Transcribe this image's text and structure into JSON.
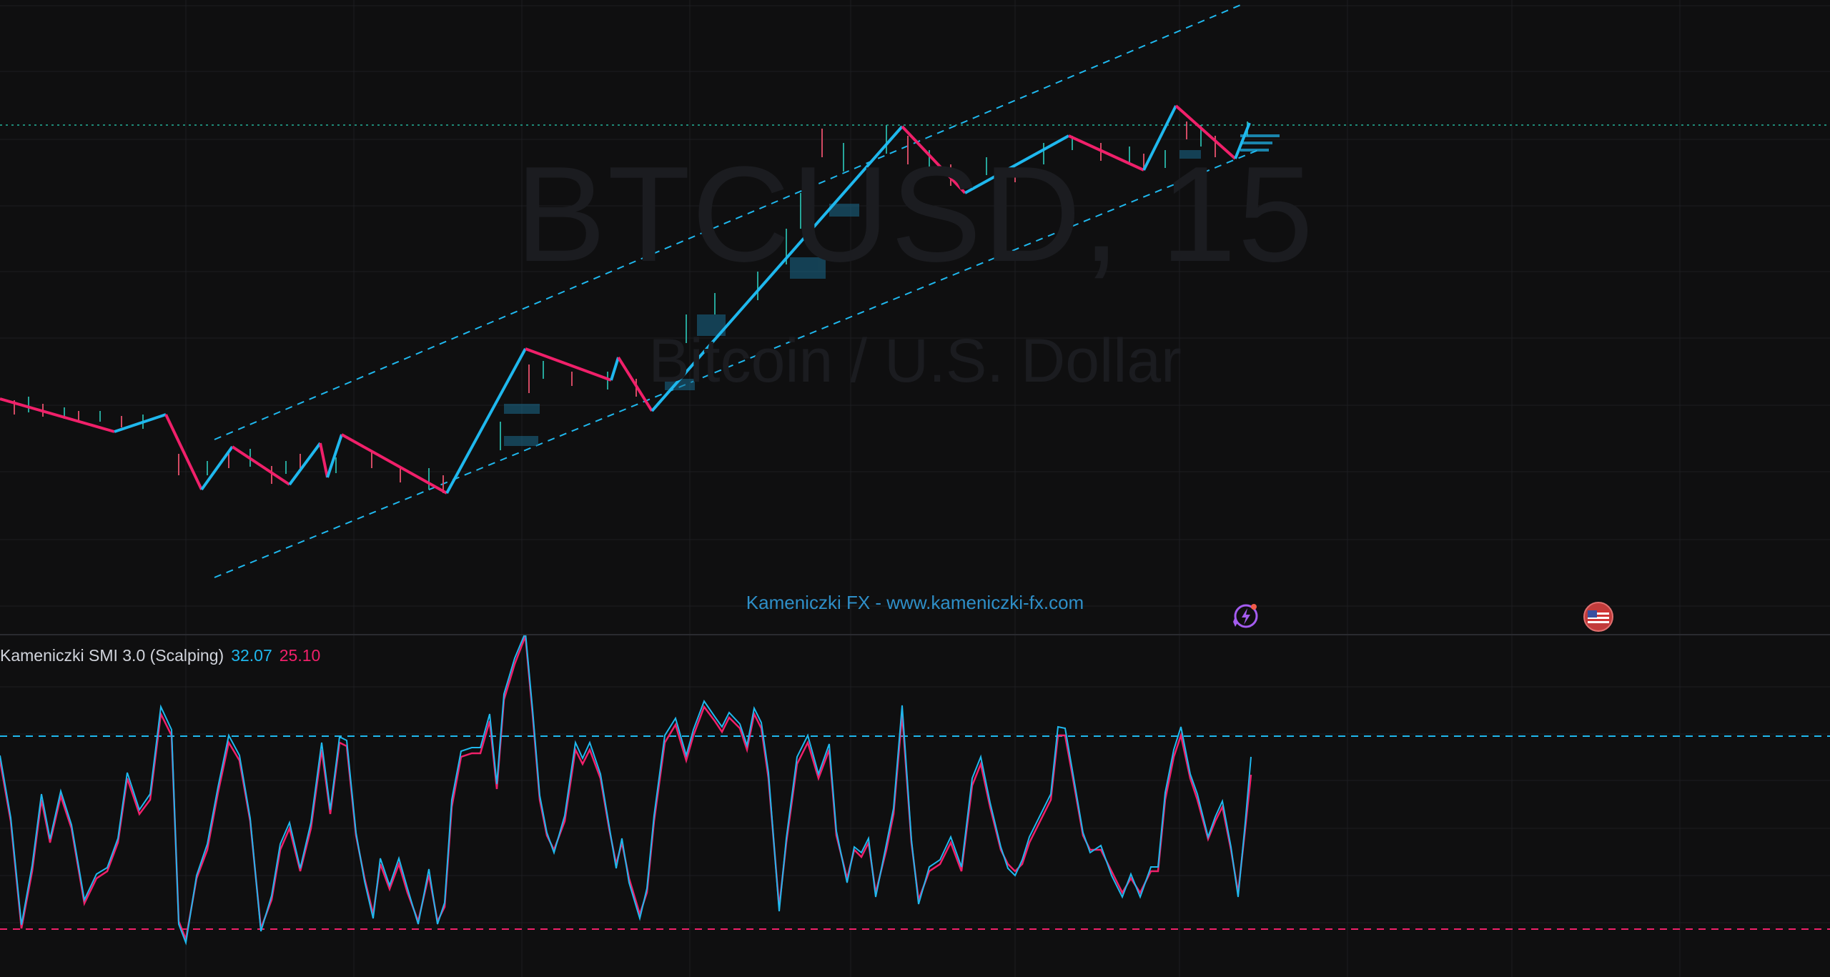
{
  "chart": {
    "symbol_watermark": "BTCUSD, 15",
    "name_watermark": "Bitcoin / U.S. Dollar",
    "credit": "Kameniczki FX - www.kameniczki-fx.com"
  },
  "indicator": {
    "label": "Kameniczki SMI 3.0 (Scalping)",
    "value1": "32.07",
    "value2": "25.10"
  },
  "icons": {
    "replay": "replay-lightning-icon",
    "flag": "us-flag-icon"
  },
  "colors": {
    "background": "#0f0f10",
    "up": "#1fb8ee",
    "down": "#f0206a",
    "credit": "#2e8fc8"
  }
}
